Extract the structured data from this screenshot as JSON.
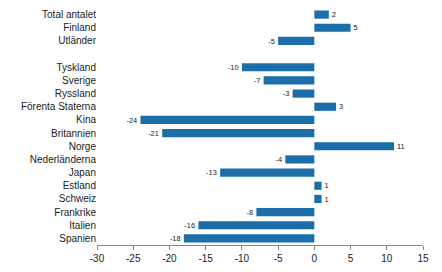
{
  "chart_data": {
    "type": "bar",
    "orientation": "horizontal",
    "categories": [
      "Total antalet",
      "Finland",
      "Utländer",
      null,
      "Tyskland",
      "Sverige",
      "Ryssland",
      "Förenta Staterna",
      "Kina",
      "Britannien",
      "Norge",
      "Nederländerna",
      "Japan",
      "Estland",
      "Schweiz",
      "Frankrike",
      "Italien",
      "Spanien"
    ],
    "values": [
      2,
      5,
      -5,
      null,
      -10,
      -7,
      -3,
      3,
      -24,
      -21,
      11,
      -4,
      -13,
      1,
      1,
      -8,
      -16,
      -18
    ],
    "color": "#1b6ea8",
    "xlim": [
      -30,
      15
    ],
    "xticks": [
      -30,
      -25,
      -20,
      -15,
      -10,
      -5,
      0,
      5,
      10,
      15
    ],
    "grid": false,
    "data_labels": true
  }
}
